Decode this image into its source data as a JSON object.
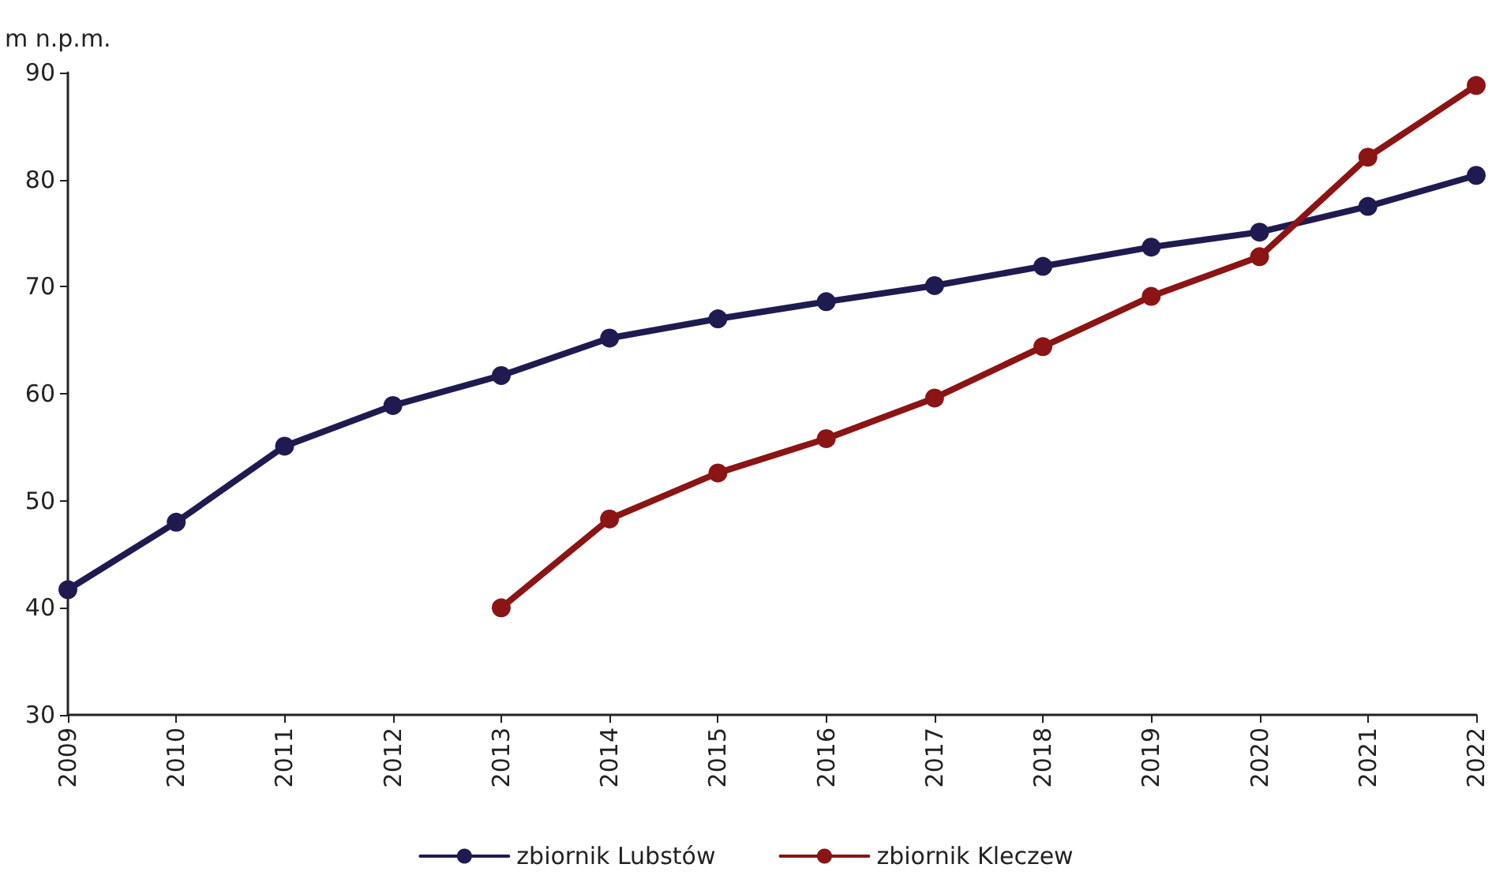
{
  "chart_data": {
    "type": "line",
    "ylabel": "m n.p.m.",
    "categories": [
      "2009",
      "2010",
      "2011",
      "2012",
      "2013",
      "2014",
      "2015",
      "2016",
      "2017",
      "2018",
      "2019",
      "2020",
      "2021",
      "2022"
    ],
    "series": [
      {
        "name": "zbiornik Lubstów",
        "color": "#1f1a4f",
        "values": [
          41.7,
          48.0,
          55.1,
          58.9,
          61.7,
          65.2,
          67.0,
          68.6,
          70.1,
          71.9,
          73.7,
          75.1,
          77.5,
          80.4
        ]
      },
      {
        "name": "zbiornik Kleczew",
        "color": "#8b1414",
        "values": [
          null,
          null,
          null,
          null,
          40.0,
          48.3,
          52.6,
          55.8,
          59.6,
          64.4,
          69.1,
          72.8,
          82.1,
          88.8
        ]
      }
    ],
    "ylim": [
      30,
      90
    ],
    "yticks": [
      30,
      40,
      50,
      60,
      70,
      80,
      90
    ],
    "grid": false,
    "legend": "bottom",
    "marker": "circle",
    "line_style": "solid"
  }
}
